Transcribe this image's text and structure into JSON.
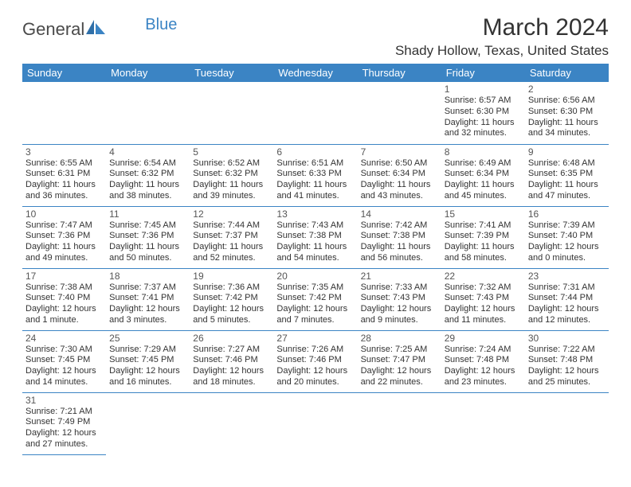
{
  "logo": {
    "text1": "General",
    "text2": "Blue",
    "color1": "#4a4a4a",
    "color2": "#3b84c4"
  },
  "title": "March 2024",
  "location": "Shady Hollow, Texas, United States",
  "headers": [
    "Sunday",
    "Monday",
    "Tuesday",
    "Wednesday",
    "Thursday",
    "Friday",
    "Saturday"
  ],
  "header_bg": "#3b84c4",
  "border_color": "#3b84c4",
  "weeks": [
    [
      null,
      null,
      null,
      null,
      null,
      {
        "n": "1",
        "sr": "6:57 AM",
        "ss": "6:30 PM",
        "dl": "11 hours and 32 minutes."
      },
      {
        "n": "2",
        "sr": "6:56 AM",
        "ss": "6:30 PM",
        "dl": "11 hours and 34 minutes."
      }
    ],
    [
      {
        "n": "3",
        "sr": "6:55 AM",
        "ss": "6:31 PM",
        "dl": "11 hours and 36 minutes."
      },
      {
        "n": "4",
        "sr": "6:54 AM",
        "ss": "6:32 PM",
        "dl": "11 hours and 38 minutes."
      },
      {
        "n": "5",
        "sr": "6:52 AM",
        "ss": "6:32 PM",
        "dl": "11 hours and 39 minutes."
      },
      {
        "n": "6",
        "sr": "6:51 AM",
        "ss": "6:33 PM",
        "dl": "11 hours and 41 minutes."
      },
      {
        "n": "7",
        "sr": "6:50 AM",
        "ss": "6:34 PM",
        "dl": "11 hours and 43 minutes."
      },
      {
        "n": "8",
        "sr": "6:49 AM",
        "ss": "6:34 PM",
        "dl": "11 hours and 45 minutes."
      },
      {
        "n": "9",
        "sr": "6:48 AM",
        "ss": "6:35 PM",
        "dl": "11 hours and 47 minutes."
      }
    ],
    [
      {
        "n": "10",
        "sr": "7:47 AM",
        "ss": "7:36 PM",
        "dl": "11 hours and 49 minutes."
      },
      {
        "n": "11",
        "sr": "7:45 AM",
        "ss": "7:36 PM",
        "dl": "11 hours and 50 minutes."
      },
      {
        "n": "12",
        "sr": "7:44 AM",
        "ss": "7:37 PM",
        "dl": "11 hours and 52 minutes."
      },
      {
        "n": "13",
        "sr": "7:43 AM",
        "ss": "7:38 PM",
        "dl": "11 hours and 54 minutes."
      },
      {
        "n": "14",
        "sr": "7:42 AM",
        "ss": "7:38 PM",
        "dl": "11 hours and 56 minutes."
      },
      {
        "n": "15",
        "sr": "7:41 AM",
        "ss": "7:39 PM",
        "dl": "11 hours and 58 minutes."
      },
      {
        "n": "16",
        "sr": "7:39 AM",
        "ss": "7:40 PM",
        "dl": "12 hours and 0 minutes."
      }
    ],
    [
      {
        "n": "17",
        "sr": "7:38 AM",
        "ss": "7:40 PM",
        "dl": "12 hours and 1 minute."
      },
      {
        "n": "18",
        "sr": "7:37 AM",
        "ss": "7:41 PM",
        "dl": "12 hours and 3 minutes."
      },
      {
        "n": "19",
        "sr": "7:36 AM",
        "ss": "7:42 PM",
        "dl": "12 hours and 5 minutes."
      },
      {
        "n": "20",
        "sr": "7:35 AM",
        "ss": "7:42 PM",
        "dl": "12 hours and 7 minutes."
      },
      {
        "n": "21",
        "sr": "7:33 AM",
        "ss": "7:43 PM",
        "dl": "12 hours and 9 minutes."
      },
      {
        "n": "22",
        "sr": "7:32 AM",
        "ss": "7:43 PM",
        "dl": "12 hours and 11 minutes."
      },
      {
        "n": "23",
        "sr": "7:31 AM",
        "ss": "7:44 PM",
        "dl": "12 hours and 12 minutes."
      }
    ],
    [
      {
        "n": "24",
        "sr": "7:30 AM",
        "ss": "7:45 PM",
        "dl": "12 hours and 14 minutes."
      },
      {
        "n": "25",
        "sr": "7:29 AM",
        "ss": "7:45 PM",
        "dl": "12 hours and 16 minutes."
      },
      {
        "n": "26",
        "sr": "7:27 AM",
        "ss": "7:46 PM",
        "dl": "12 hours and 18 minutes."
      },
      {
        "n": "27",
        "sr": "7:26 AM",
        "ss": "7:46 PM",
        "dl": "12 hours and 20 minutes."
      },
      {
        "n": "28",
        "sr": "7:25 AM",
        "ss": "7:47 PM",
        "dl": "12 hours and 22 minutes."
      },
      {
        "n": "29",
        "sr": "7:24 AM",
        "ss": "7:48 PM",
        "dl": "12 hours and 23 minutes."
      },
      {
        "n": "30",
        "sr": "7:22 AM",
        "ss": "7:48 PM",
        "dl": "12 hours and 25 minutes."
      }
    ],
    [
      {
        "n": "31",
        "sr": "7:21 AM",
        "ss": "7:49 PM",
        "dl": "12 hours and 27 minutes."
      },
      null,
      null,
      null,
      null,
      null,
      null
    ]
  ],
  "labels": {
    "sunrise": "Sunrise:",
    "sunset": "Sunset:",
    "daylight": "Daylight:"
  }
}
